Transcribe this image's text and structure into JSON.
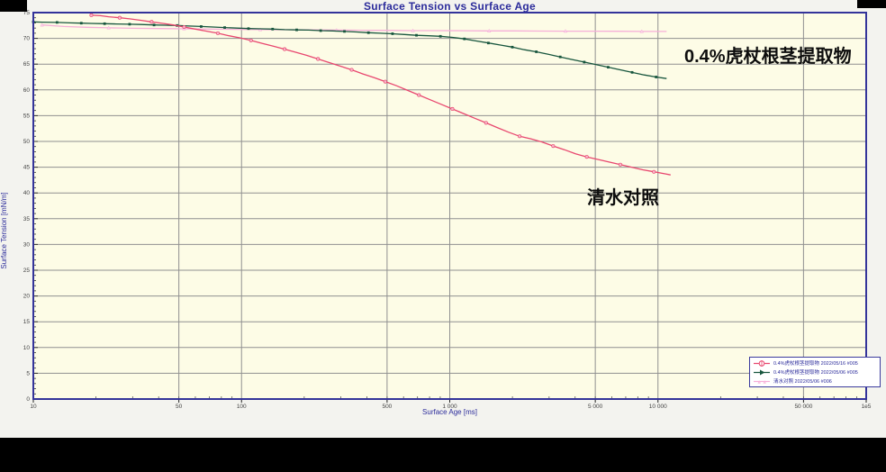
{
  "title": "Surface Tension vs Surface Age",
  "chart_data": {
    "type": "line",
    "title": "Surface Tension vs Surface Age",
    "xlabel": "Surface Age [ms]",
    "ylabel": "Surface Tension [mN/m]",
    "xscale": "log",
    "xlim": [
      10,
      100000
    ],
    "ylim": [
      0,
      75
    ],
    "grid": true,
    "colors": {
      "plot_bg": "#fdfce6",
      "outer_bg": "#f3f3ef",
      "frame": "#34349a",
      "grid": "#909090",
      "tick_text": "#444444",
      "title_text": "#2b2b9b"
    },
    "x_ticks": [
      {
        "v": 10,
        "label": "10"
      },
      {
        "v": 50,
        "label": "50"
      },
      {
        "v": 100,
        "label": "100"
      },
      {
        "v": 500,
        "label": "500"
      },
      {
        "v": 1000,
        "label": "1 000"
      },
      {
        "v": 5000,
        "label": "5 000"
      },
      {
        "v": 10000,
        "label": "10 000"
      },
      {
        "v": 50000,
        "label": "50 000"
      },
      {
        "v": 100000,
        "label": "1e5"
      }
    ],
    "grid_x": [
      50,
      100,
      500,
      1000,
      5000,
      10000,
      50000
    ],
    "y_tick_labels": [
      "75",
      "70",
      "65",
      "60",
      "55",
      "50",
      "45",
      "40",
      "35",
      "30",
      "25",
      "20",
      "15",
      "10",
      "5",
      "0"
    ],
    "y_tick_step": 5,
    "series": [
      {
        "name": "清水对照 2022/05/06 #006",
        "color": "#f6aed8",
        "marker_fill": "#fbd3ea",
        "marker": "triangle",
        "marker_step": 3,
        "points": [
          [
            11,
            72.6
          ],
          [
            14,
            72.3
          ],
          [
            18,
            72.15
          ],
          [
            23,
            72.05
          ],
          [
            30,
            71.95
          ],
          [
            40,
            71.9
          ],
          [
            53,
            71.85
          ],
          [
            70,
            71.8
          ],
          [
            93,
            71.75
          ],
          [
            123,
            71.7
          ],
          [
            163,
            71.68
          ],
          [
            216,
            71.65
          ],
          [
            286,
            71.6
          ],
          [
            379,
            71.58
          ],
          [
            502,
            71.55
          ],
          [
            665,
            71.5
          ],
          [
            881,
            71.5
          ],
          [
            1167,
            71.48
          ],
          [
            1546,
            71.45
          ],
          [
            2048,
            71.45
          ],
          [
            2713,
            71.42
          ],
          [
            3594,
            71.4
          ],
          [
            4761,
            71.4
          ],
          [
            6307,
            71.38
          ],
          [
            8355,
            71.35
          ],
          [
            11000,
            71.35
          ]
        ]
      },
      {
        "name": "0.4%虎杖根茎提取物 2022/05/06 #005",
        "color": "#18563e",
        "marker_fill": "#18563e",
        "marker": "square",
        "marker_step": 2,
        "points": [
          [
            10,
            73.2
          ],
          [
            11,
            73.15
          ],
          [
            13,
            73.1
          ],
          [
            15,
            73.0
          ],
          [
            17,
            72.95
          ],
          [
            19,
            72.9
          ],
          [
            22,
            72.85
          ],
          [
            25,
            72.8
          ],
          [
            29,
            72.75
          ],
          [
            33,
            72.7
          ],
          [
            38,
            72.6
          ],
          [
            43,
            72.55
          ],
          [
            49,
            72.5
          ],
          [
            56,
            72.4
          ],
          [
            64,
            72.3
          ],
          [
            73,
            72.2
          ],
          [
            83,
            72.1
          ],
          [
            95,
            72.0
          ],
          [
            108,
            71.9
          ],
          [
            124,
            71.85
          ],
          [
            141,
            71.8
          ],
          [
            161,
            71.7
          ],
          [
            184,
            71.65
          ],
          [
            210,
            71.6
          ],
          [
            240,
            71.5
          ],
          [
            274,
            71.45
          ],
          [
            312,
            71.35
          ],
          [
            357,
            71.25
          ],
          [
            407,
            71.1
          ],
          [
            465,
            71.0
          ],
          [
            531,
            70.9
          ],
          [
            606,
            70.75
          ],
          [
            692,
            70.6
          ],
          [
            790,
            70.5
          ],
          [
            902,
            70.4
          ],
          [
            1030,
            70.2
          ],
          [
            1176,
            69.9
          ],
          [
            1343,
            69.5
          ],
          [
            1533,
            69.1
          ],
          [
            1750,
            68.7
          ],
          [
            1998,
            68.3
          ],
          [
            2281,
            67.8
          ],
          [
            2604,
            67.4
          ],
          [
            2973,
            66.9
          ],
          [
            3394,
            66.4
          ],
          [
            3875,
            65.9
          ],
          [
            4424,
            65.4
          ],
          [
            5051,
            64.9
          ],
          [
            5766,
            64.4
          ],
          [
            6583,
            63.9
          ],
          [
            7515,
            63.4
          ],
          [
            8580,
            62.9
          ],
          [
            9795,
            62.5
          ],
          [
            11000,
            62.2
          ]
        ]
      },
      {
        "name": "0.4%虎杖根茎提取物 2022/05/16 #005",
        "color": "#e8476f",
        "marker_fill": "#f8b8cc",
        "marker": "circle",
        "marker_step": 3,
        "points": [
          [
            19,
            74.5
          ],
          [
            21,
            74.4
          ],
          [
            23,
            74.2
          ],
          [
            26,
            74.0
          ],
          [
            29,
            73.8
          ],
          [
            33,
            73.5
          ],
          [
            37,
            73.2
          ],
          [
            42,
            72.9
          ],
          [
            47,
            72.6
          ],
          [
            53,
            72.2
          ],
          [
            60,
            71.8
          ],
          [
            68,
            71.4
          ],
          [
            77,
            71.0
          ],
          [
            87,
            70.5
          ],
          [
            98,
            70.1
          ],
          [
            111,
            69.6
          ],
          [
            126,
            69.0
          ],
          [
            142,
            68.5
          ],
          [
            161,
            67.9
          ],
          [
            182,
            67.3
          ],
          [
            206,
            66.7
          ],
          [
            233,
            66.0
          ],
          [
            264,
            65.3
          ],
          [
            299,
            64.6
          ],
          [
            338,
            63.9
          ],
          [
            383,
            63.1
          ],
          [
            433,
            62.4
          ],
          [
            490,
            61.6
          ],
          [
            555,
            60.8
          ],
          [
            628,
            59.9
          ],
          [
            711,
            59.0
          ],
          [
            804,
            58.1
          ],
          [
            910,
            57.2
          ],
          [
            1030,
            56.3
          ],
          [
            1166,
            55.4
          ],
          [
            1319,
            54.5
          ],
          [
            1493,
            53.6
          ],
          [
            1690,
            52.7
          ],
          [
            1913,
            51.8
          ],
          [
            2165,
            51.0
          ],
          [
            2450,
            50.5
          ],
          [
            2773,
            49.9
          ],
          [
            3138,
            49.1
          ],
          [
            3552,
            48.4
          ],
          [
            4020,
            47.6
          ],
          [
            4550,
            47.0
          ],
          [
            5149,
            46.5
          ],
          [
            5828,
            46.0
          ],
          [
            6596,
            45.5
          ],
          [
            7465,
            45.0
          ],
          [
            8449,
            44.5
          ],
          [
            9562,
            44.1
          ],
          [
            10822,
            43.7
          ],
          [
            11500,
            43.5
          ]
        ]
      }
    ],
    "annotations": [
      {
        "text": "0.4%虎杖根茎提取物"
      },
      {
        "text": "清水对照"
      }
    ],
    "legend": {
      "position": "bottom-right",
      "entries": [
        {
          "label": "0.4%虎杖根茎提取物 2022/05/16 #005",
          "color": "#e8476f",
          "marker": "circle-plus"
        },
        {
          "label": "0.4%虎杖根茎提取物 2022/05/06 #005",
          "color": "#18563e",
          "marker": "flag"
        },
        {
          "label": "清水对照 2022/05/06 #006",
          "color": "#f6aed8",
          "marker": "triangles"
        }
      ]
    }
  }
}
